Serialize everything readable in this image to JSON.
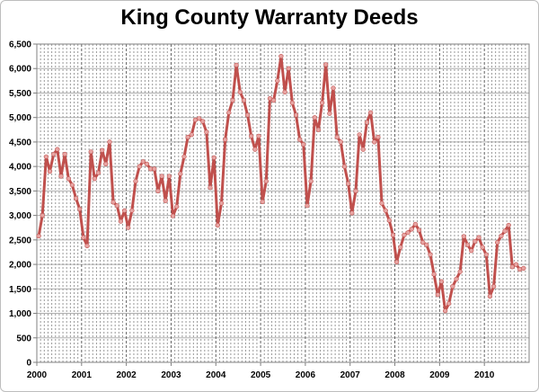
{
  "chart_data": {
    "type": "line",
    "title": "King County Warranty Deeds",
    "xlabel": "",
    "ylabel": "",
    "ylim": [
      0,
      6500
    ],
    "y_ticks": [
      0,
      500,
      1000,
      1500,
      2000,
      2500,
      3000,
      3500,
      4000,
      4500,
      5000,
      5500,
      6000,
      6500
    ],
    "y_tick_labels": [
      "0",
      "500",
      "1,000",
      "1,500",
      "2,000",
      "2,500",
      "3,000",
      "3,500",
      "4,000",
      "4,500",
      "5,000",
      "5,500",
      "6,000",
      "6,500"
    ],
    "x_tick_labels": [
      "2000",
      "2001",
      "2002",
      "2003",
      "2004",
      "2005",
      "2006",
      "2007",
      "2008",
      "2009",
      "2010"
    ],
    "x_start": "2000-01",
    "x_end": "2010-12",
    "grid": {
      "horizontal": true,
      "vertical": true
    },
    "legend": "none",
    "line_color": "#c0504d",
    "series": [
      {
        "x": [
          "2000-01",
          "2000-02",
          "2000-03",
          "2000-04",
          "2000-05",
          "2000-06",
          "2000-07",
          "2000-08",
          "2000-09",
          "2000-10",
          "2000-11",
          "2000-12",
          "2001-01",
          "2001-02",
          "2001-03",
          "2001-04",
          "2001-05",
          "2001-06",
          "2001-07",
          "2001-08",
          "2001-09",
          "2001-10",
          "2001-11",
          "2001-12",
          "2002-01",
          "2002-02",
          "2002-03",
          "2002-04",
          "2002-05",
          "2002-06",
          "2002-07",
          "2002-08",
          "2002-09",
          "2002-10",
          "2002-11",
          "2002-12",
          "2003-01",
          "2003-02",
          "2003-03",
          "2003-04",
          "2003-05",
          "2003-06",
          "2003-07",
          "2003-08",
          "2003-09",
          "2003-10",
          "2003-11",
          "2003-12",
          "2004-01",
          "2004-02",
          "2004-03",
          "2004-04",
          "2004-05",
          "2004-06",
          "2004-07",
          "2004-08",
          "2004-09",
          "2004-10",
          "2004-11",
          "2004-12",
          "2005-01",
          "2005-02",
          "2005-03",
          "2005-04",
          "2005-05",
          "2005-06",
          "2005-07",
          "2005-08",
          "2005-09",
          "2005-10",
          "2005-11",
          "2005-12",
          "2006-01",
          "2006-02",
          "2006-03",
          "2006-04",
          "2006-05",
          "2006-06",
          "2006-07",
          "2006-08",
          "2006-09",
          "2006-10",
          "2006-11",
          "2006-12",
          "2007-01",
          "2007-02",
          "2007-03",
          "2007-04",
          "2007-05",
          "2007-06",
          "2007-07",
          "2007-08",
          "2007-09",
          "2007-10",
          "2007-11",
          "2007-12",
          "2008-01",
          "2008-02",
          "2008-03",
          "2008-04",
          "2008-05",
          "2008-06",
          "2008-07",
          "2008-08",
          "2008-09",
          "2008-10",
          "2008-11",
          "2008-12",
          "2009-01",
          "2009-02",
          "2009-03",
          "2009-04",
          "2009-05",
          "2009-06",
          "2009-07",
          "2009-08",
          "2009-09",
          "2009-10",
          "2009-11",
          "2009-12",
          "2010-01",
          "2010-02",
          "2010-03",
          "2010-04",
          "2010-05",
          "2010-06",
          "2010-07",
          "2010-08",
          "2010-09",
          "2010-10",
          "2010-11"
        ],
        "values": [
          2580,
          3000,
          4200,
          3900,
          4250,
          4350,
          3800,
          4250,
          3750,
          3620,
          3350,
          3130,
          2550,
          2380,
          4300,
          3750,
          3870,
          4330,
          4050,
          4500,
          3270,
          3200,
          2880,
          3100,
          2750,
          3100,
          3700,
          4000,
          4100,
          4050,
          3950,
          3950,
          3500,
          3800,
          3300,
          3800,
          2990,
          3180,
          3850,
          4200,
          4600,
          4650,
          4950,
          4980,
          4920,
          4700,
          3570,
          4180,
          2800,
          3250,
          4550,
          5100,
          5350,
          6070,
          5520,
          5350,
          5050,
          4620,
          4350,
          4620,
          3280,
          3700,
          5390,
          5350,
          5750,
          6250,
          5520,
          6000,
          5300,
          5050,
          4550,
          4450,
          3200,
          3700,
          5000,
          4750,
          5300,
          6080,
          5080,
          5600,
          4600,
          4500,
          4000,
          3650,
          3050,
          3500,
          4650,
          4350,
          4900,
          5100,
          4500,
          4600,
          3250,
          3100,
          2900,
          2600,
          2050,
          2350,
          2600,
          2650,
          2720,
          2820,
          2700,
          2450,
          2400,
          2200,
          1800,
          1380,
          1650,
          1050,
          1200,
          1550,
          1700,
          1850,
          2570,
          2400,
          2280,
          2470,
          2550,
          2350,
          2200,
          1350,
          1550,
          2450,
          2580,
          2680,
          2800,
          1950,
          2000,
          1900,
          1920
        ]
      }
    ]
  }
}
